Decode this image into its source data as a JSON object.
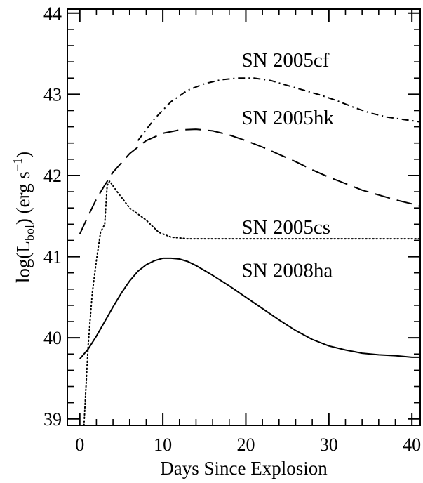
{
  "chart_data": {
    "type": "line",
    "title": "",
    "xlabel": "Days Since Explosion",
    "ylabel": {
      "pre": "log(L",
      "sub": "bol",
      "mid": ") (erg s",
      "sup": "−1",
      "post": ")"
    },
    "xlim": [
      -1.5,
      41
    ],
    "ylim": [
      38.92,
      44.05
    ],
    "xticks": [
      0,
      10,
      20,
      30,
      40
    ],
    "yticks": [
      39,
      40,
      41,
      42,
      43,
      44
    ],
    "minor_x_step": 2,
    "minor_y_step": 0.2,
    "grid": false,
    "legend": "none",
    "series": [
      {
        "name": "SN 2005cf",
        "style": "dashdot",
        "x": [
          7.0,
          9.0,
          11.0,
          13.0,
          15.0,
          17.0,
          19.0,
          21.0,
          23.0,
          25.0,
          27.0,
          29.0,
          31.0,
          33.0,
          35.0,
          37.0,
          39.0,
          41.0
        ],
        "y": [
          42.43,
          42.7,
          42.91,
          43.05,
          43.13,
          43.18,
          43.2,
          43.2,
          43.17,
          43.11,
          43.05,
          42.99,
          42.92,
          42.84,
          42.77,
          42.72,
          42.69,
          42.66
        ]
      },
      {
        "name": "SN 2005hk",
        "style": "dashed",
        "x": [
          0.0,
          1.0,
          2.0,
          3.0,
          4.0,
          6.0,
          8.0,
          10.0,
          12.0,
          14.0,
          16.0,
          18.0,
          20.0,
          22.0,
          24.0,
          26.0,
          28.0,
          30.0,
          32.0,
          34.0,
          36.0,
          38.0,
          40.0,
          41.0
        ],
        "y": [
          41.28,
          41.5,
          41.71,
          41.88,
          42.04,
          42.27,
          42.43,
          42.52,
          42.56,
          42.57,
          42.55,
          42.5,
          42.43,
          42.35,
          42.26,
          42.17,
          42.07,
          41.98,
          41.9,
          41.82,
          41.76,
          41.7,
          41.65,
          41.62
        ]
      },
      {
        "name": "SN 2005cs",
        "style": "dotted",
        "x": [
          0.5,
          1.0,
          1.5,
          2.0,
          2.5,
          3.0,
          3.3,
          3.6,
          4.5,
          6.0,
          8.0,
          9.5,
          11.0,
          13.0,
          15.0,
          20.0,
          25.0,
          30.0,
          35.0,
          41.0
        ],
        "y": [
          38.92,
          39.9,
          40.55,
          40.95,
          41.3,
          41.4,
          41.88,
          41.93,
          41.8,
          41.6,
          41.45,
          41.3,
          41.24,
          41.22,
          41.22,
          41.22,
          41.22,
          41.22,
          41.22,
          41.22
        ]
      },
      {
        "name": "SN 2008ha",
        "style": "solid",
        "x": [
          0.0,
          1.0,
          2.0,
          3.0,
          4.0,
          5.0,
          6.0,
          7.0,
          8.0,
          9.0,
          10.0,
          11.0,
          12.0,
          13.0,
          14.0,
          15.0,
          16.0,
          18.0,
          20.0,
          22.0,
          24.0,
          26.0,
          28.0,
          30.0,
          32.0,
          34.0,
          36.0,
          38.0,
          40.0,
          41.0
        ],
        "y": [
          39.74,
          39.86,
          40.02,
          40.2,
          40.38,
          40.55,
          40.7,
          40.82,
          40.9,
          40.95,
          40.98,
          40.98,
          40.97,
          40.94,
          40.89,
          40.83,
          40.77,
          40.64,
          40.5,
          40.36,
          40.22,
          40.09,
          39.98,
          39.9,
          39.85,
          39.81,
          39.79,
          39.78,
          39.76,
          39.76
        ]
      }
    ],
    "annotations": [
      {
        "text": "SN 2005cf",
        "x": 19.5,
        "y": 43.34
      },
      {
        "text": "SN 2005hk",
        "x": 19.5,
        "y": 42.63
      },
      {
        "text": "SN 2005cs",
        "x": 19.5,
        "y": 41.28
      },
      {
        "text": "SN 2008ha",
        "x": 19.5,
        "y": 40.75
      }
    ]
  }
}
